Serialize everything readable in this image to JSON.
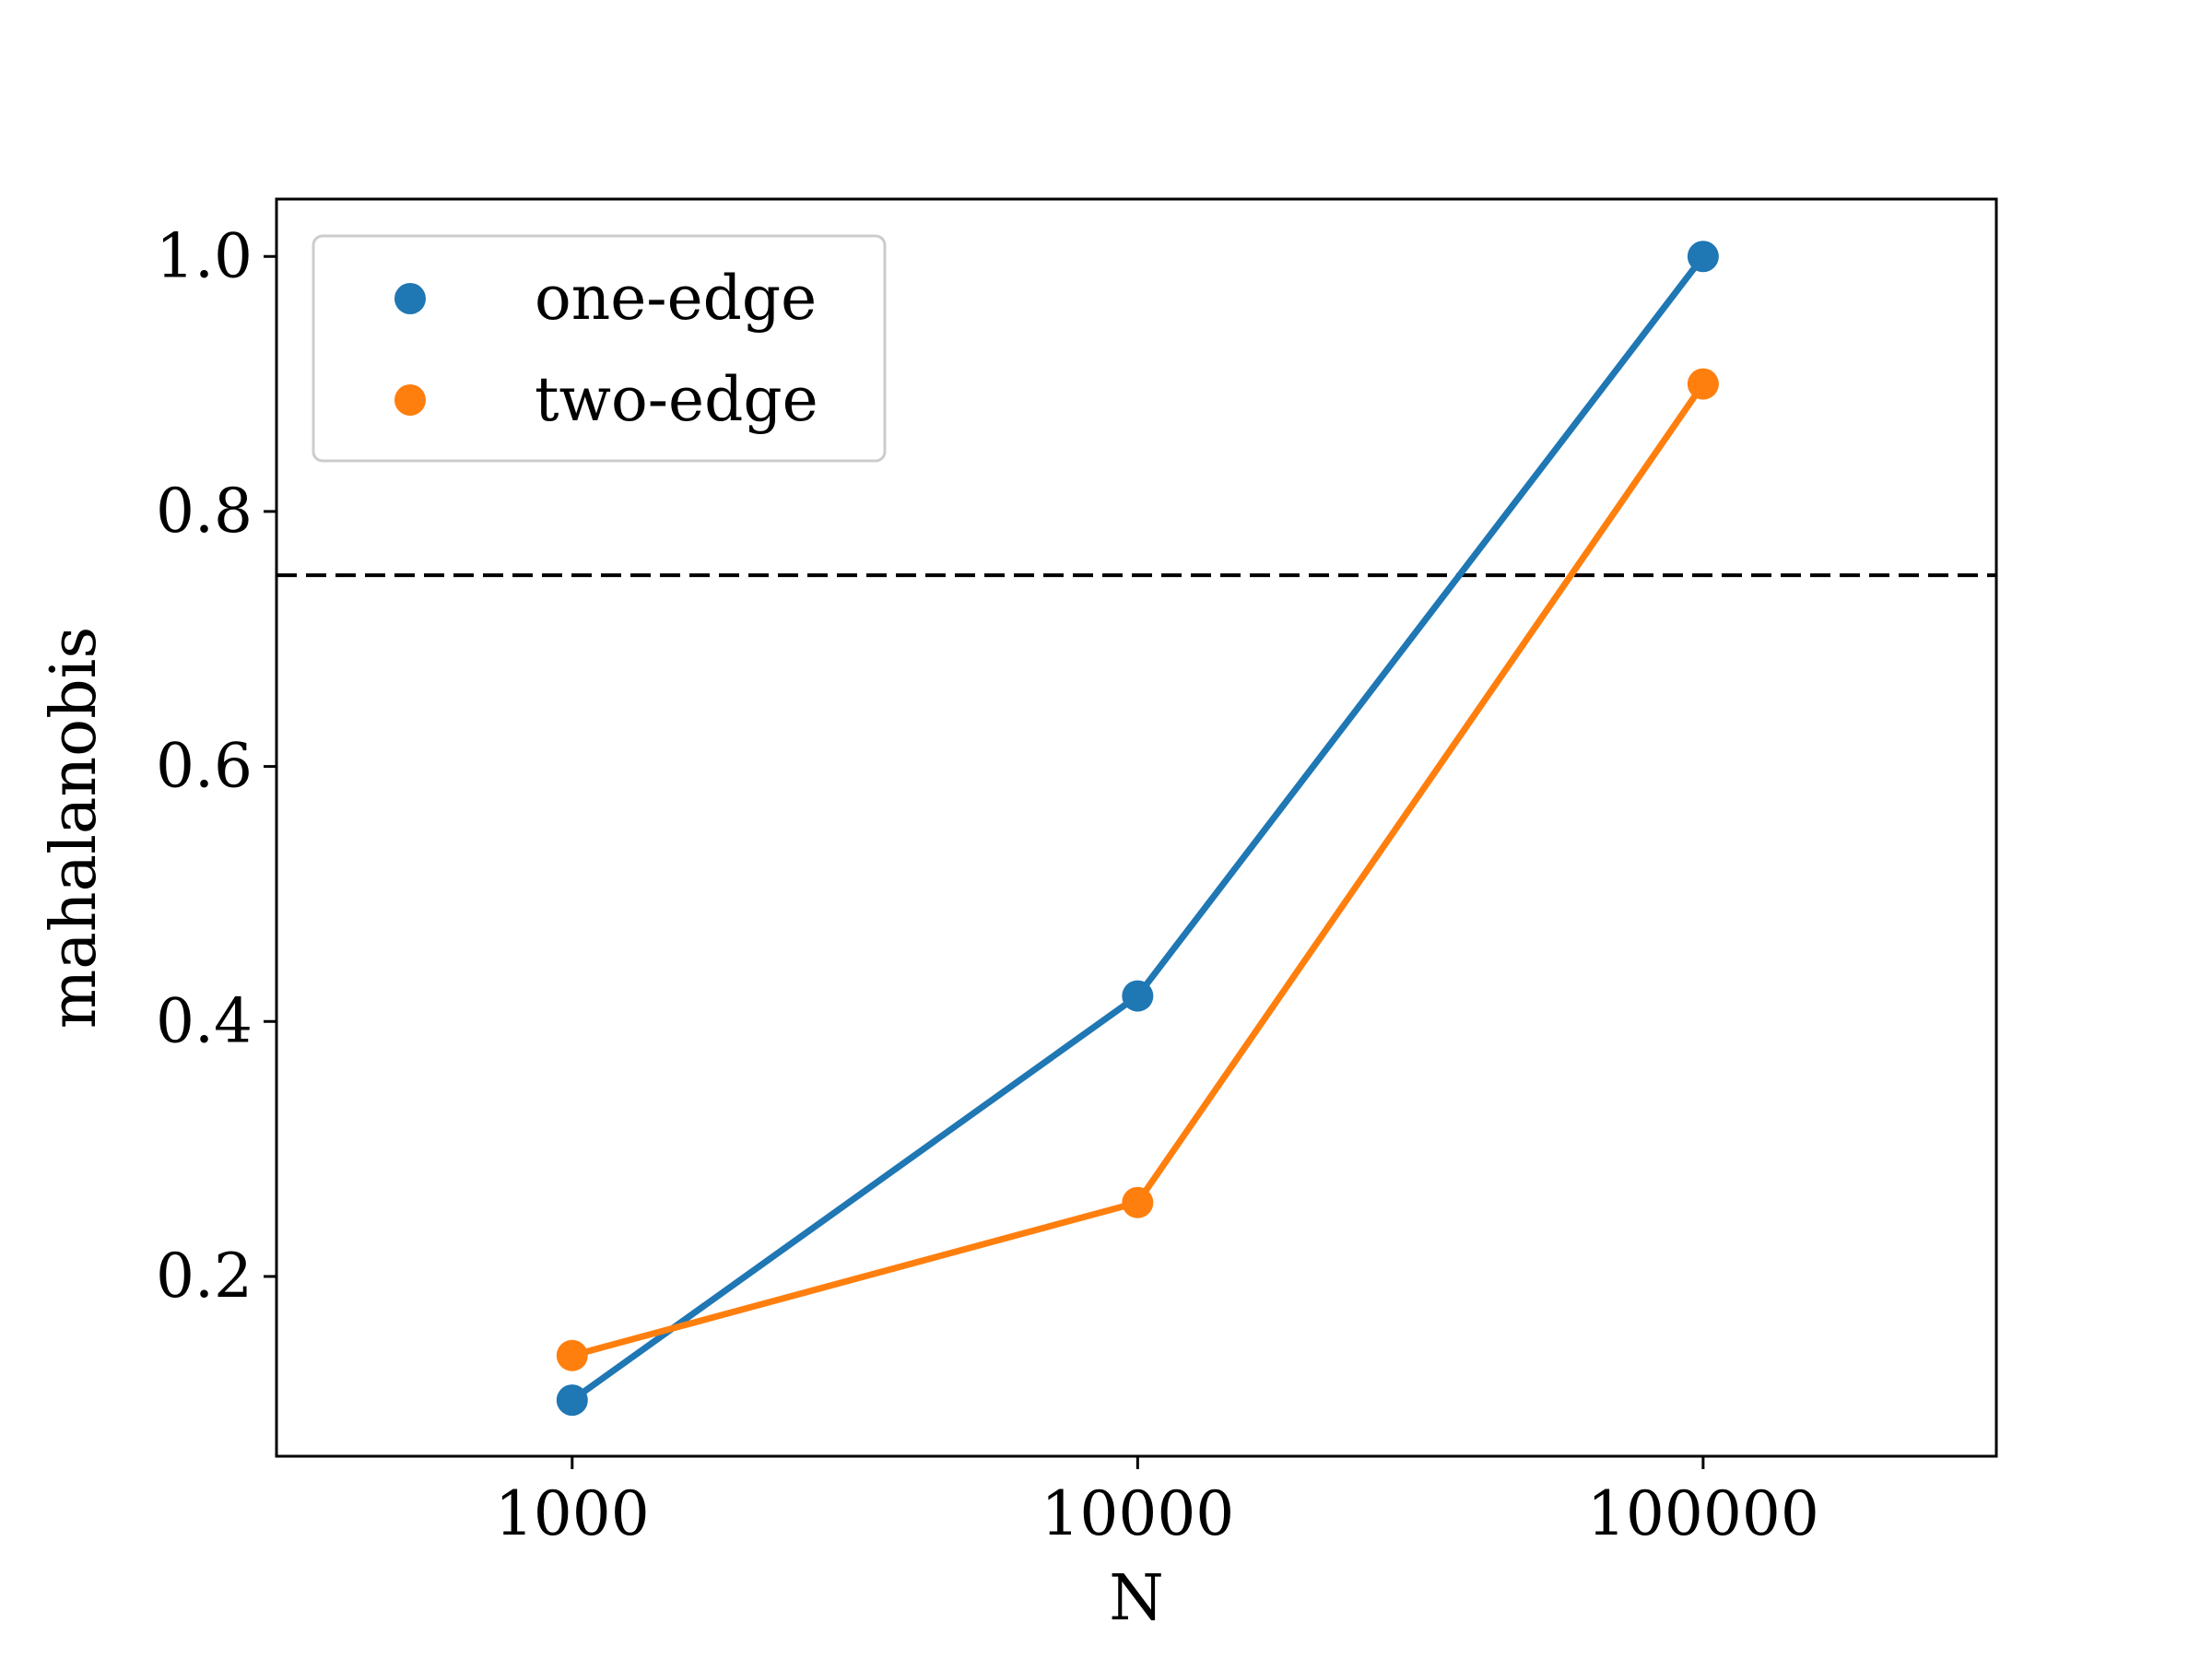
{
  "chart_data": {
    "type": "line",
    "x": [
      1000,
      10000,
      100000
    ],
    "x_scale": "log",
    "x_ticks": [
      1000,
      10000,
      100000
    ],
    "x_tick_labels": [
      "1000",
      "10000",
      "100000"
    ],
    "xlim": [
      300,
      330000
    ],
    "y_ticks": [
      0.2,
      0.4,
      0.6,
      0.8,
      1.0
    ],
    "y_tick_labels": [
      "0.2",
      "0.4",
      "0.6",
      "0.8",
      "1.0"
    ],
    "ylim": [
      0.059,
      1.045
    ],
    "xlabel": "N",
    "ylabel": "mahalanobis",
    "grid": false,
    "legend_position": "upper-left",
    "series": [
      {
        "name": "one-edge",
        "color": "#1f77b4",
        "values": [
          0.103,
          0.42,
          1.0
        ],
        "markers": true
      },
      {
        "name": "two-edge",
        "color": "#ff7f0e",
        "values": [
          0.138,
          0.258,
          0.9
        ],
        "markers": true
      }
    ],
    "reference_lines": [
      {
        "orientation": "horizontal",
        "y": 0.75,
        "style": "dashed",
        "color": "#000000"
      }
    ]
  }
}
